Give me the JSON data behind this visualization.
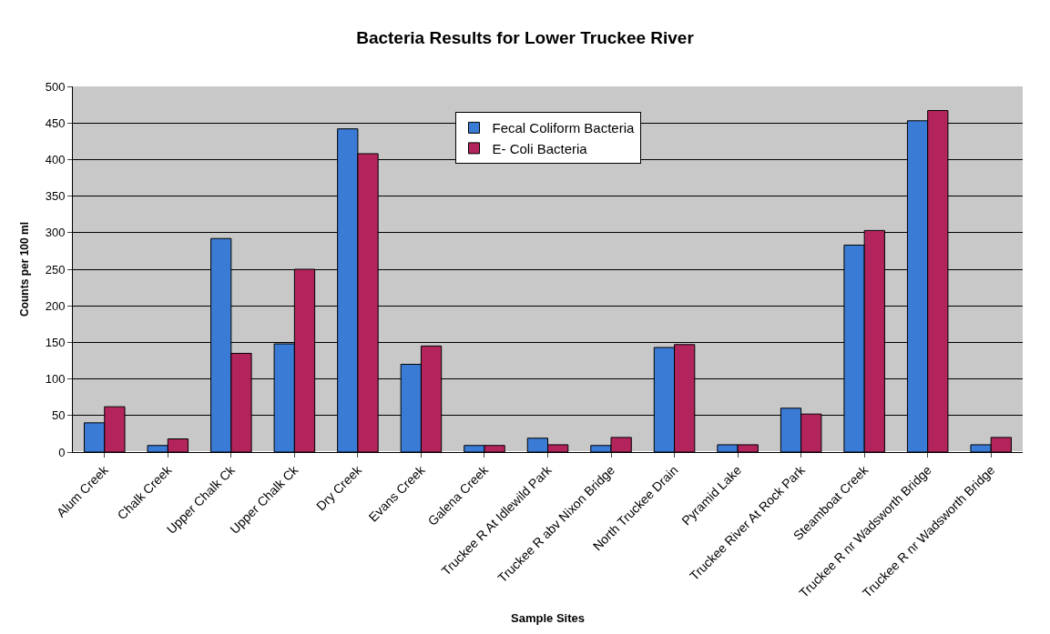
{
  "chart_data": {
    "type": "bar",
    "title": "Bacteria Results for Lower Truckee River",
    "xlabel": "Sample Sites",
    "ylabel": "Counts per 100 ml",
    "categories": [
      "Alum Creek",
      "Chalk Creek",
      "Upper Chalk Ck",
      "Upper Chalk Ck",
      "Dry Creek",
      "Evans Creek",
      "Galena Creek",
      "Truckee R At Idlewild Park",
      "Truckee R abv Nixon Bridge",
      "North Truckee Drain",
      "Pyramid Lake",
      "Truckee River At Rock Park",
      "Steamboat Creek",
      "Truckee R nr Wadsworth Bridge",
      "Truckee R nr Wadsworth Bridge"
    ],
    "series": [
      {
        "name": "Fecal Coliform Bacteria",
        "color": "#3a7bd5",
        "values": [
          40,
          9,
          292,
          148,
          442,
          120,
          9,
          19,
          9,
          143,
          10,
          60,
          283,
          453,
          10
        ]
      },
      {
        "name": "E- Coli Bacteria",
        "color": "#b3245c",
        "values": [
          62,
          18,
          135,
          250,
          408,
          145,
          9,
          10,
          20,
          147,
          10,
          52,
          303,
          467,
          20
        ]
      }
    ],
    "ylim": [
      0,
      500
    ],
    "yticks": [
      0,
      50,
      100,
      150,
      200,
      250,
      300,
      350,
      400,
      450,
      500
    ],
    "grid": "y",
    "legend": "top"
  }
}
